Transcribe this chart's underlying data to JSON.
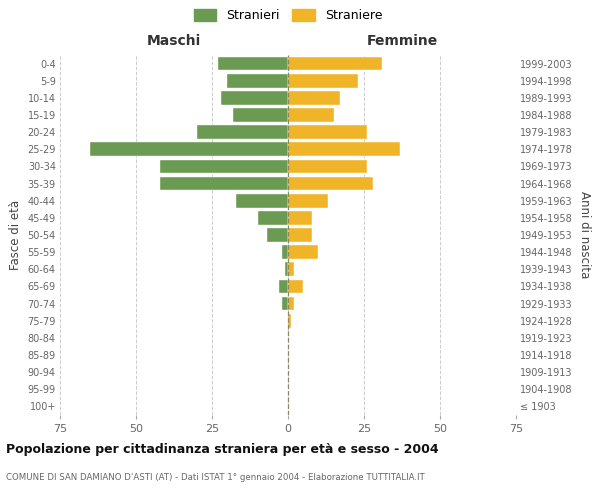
{
  "age_groups": [
    "100+",
    "95-99",
    "90-94",
    "85-89",
    "80-84",
    "75-79",
    "70-74",
    "65-69",
    "60-64",
    "55-59",
    "50-54",
    "45-49",
    "40-44",
    "35-39",
    "30-34",
    "25-29",
    "20-24",
    "15-19",
    "10-14",
    "5-9",
    "0-4"
  ],
  "birth_years": [
    "≤ 1903",
    "1904-1908",
    "1909-1913",
    "1914-1918",
    "1919-1923",
    "1924-1928",
    "1929-1933",
    "1934-1938",
    "1939-1943",
    "1944-1948",
    "1949-1953",
    "1954-1958",
    "1959-1963",
    "1964-1968",
    "1969-1973",
    "1974-1978",
    "1979-1983",
    "1984-1988",
    "1989-1993",
    "1994-1998",
    "1999-2003"
  ],
  "males": [
    0,
    0,
    0,
    0,
    0,
    0,
    2,
    3,
    1,
    2,
    7,
    10,
    17,
    42,
    42,
    65,
    30,
    18,
    22,
    20,
    23
  ],
  "females": [
    0,
    0,
    0,
    0,
    0,
    1,
    2,
    5,
    2,
    10,
    8,
    8,
    13,
    28,
    26,
    37,
    26,
    15,
    17,
    23,
    31
  ],
  "male_color": "#6b9a52",
  "female_color": "#f0b429",
  "grid_color": "#cccccc",
  "title": "Popolazione per cittadinanza straniera per età e sesso - 2004",
  "subtitle": "COMUNE DI SAN DAMIANO D'ASTI (AT) - Dati ISTAT 1° gennaio 2004 - Elaborazione TUTTITALIA.IT",
  "ylabel_left": "Fasce di età",
  "ylabel_right": "Anni di nascita",
  "xlabel_males": "Maschi",
  "xlabel_females": "Femmine",
  "legend_males": "Stranieri",
  "legend_females": "Straniere",
  "xlim": 75
}
